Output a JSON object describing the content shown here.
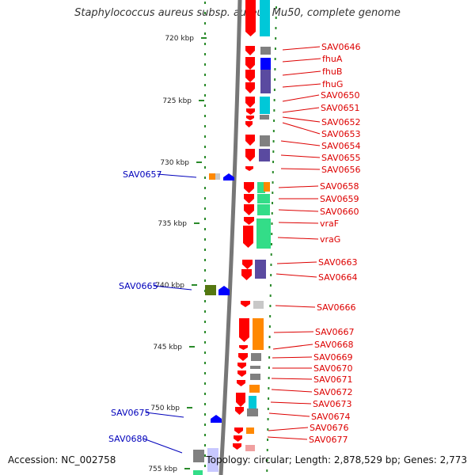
{
  "title": "Staphylococcus aureus subsp. aureus Mu50, complete genome",
  "accession": "Accession: NC_002758",
  "summary": "Topology: circular; Length: 2,878,529 bp; Genes: 2,773",
  "colors": {
    "red": "#ff0000",
    "blue_arrow": "#0000ff",
    "label_red": "#dd0000",
    "label_blue": "#0000bb",
    "cyan": "#00c8d8",
    "gray": "#808080",
    "purple": "#5a4aa0",
    "green": "#33dd88",
    "orange": "#ff8800",
    "olive": "#557711"
  },
  "axis_ticks": [
    "720 kbp",
    "725 kbp",
    "730 kbp",
    "735 kbp",
    "740 kbp",
    "745 kbp",
    "750 kbp",
    "755 kbp"
  ],
  "right_labels": [
    "SAV0646",
    "fhuA",
    "fhuB",
    "fhuG",
    "SAV0650",
    "SAV0651",
    "SAV0652",
    "SAV0653",
    "SAV0654",
    "SAV0655",
    "SAV0656",
    "SAV0658",
    "SAV0659",
    "SAV0660",
    "vraF",
    "vraG",
    "SAV0663",
    "SAV0664",
    "SAV0666",
    "SAV0667",
    "SAV0668",
    "SAV0669",
    "SAV0670",
    "SAV0671",
    "SAV0672",
    "SAV0673",
    "SAV0674",
    "SAV0676",
    "SAV0677"
  ],
  "left_labels": [
    "SAV0657",
    "SAV0665",
    "SAV0675",
    "SAV0680"
  ]
}
